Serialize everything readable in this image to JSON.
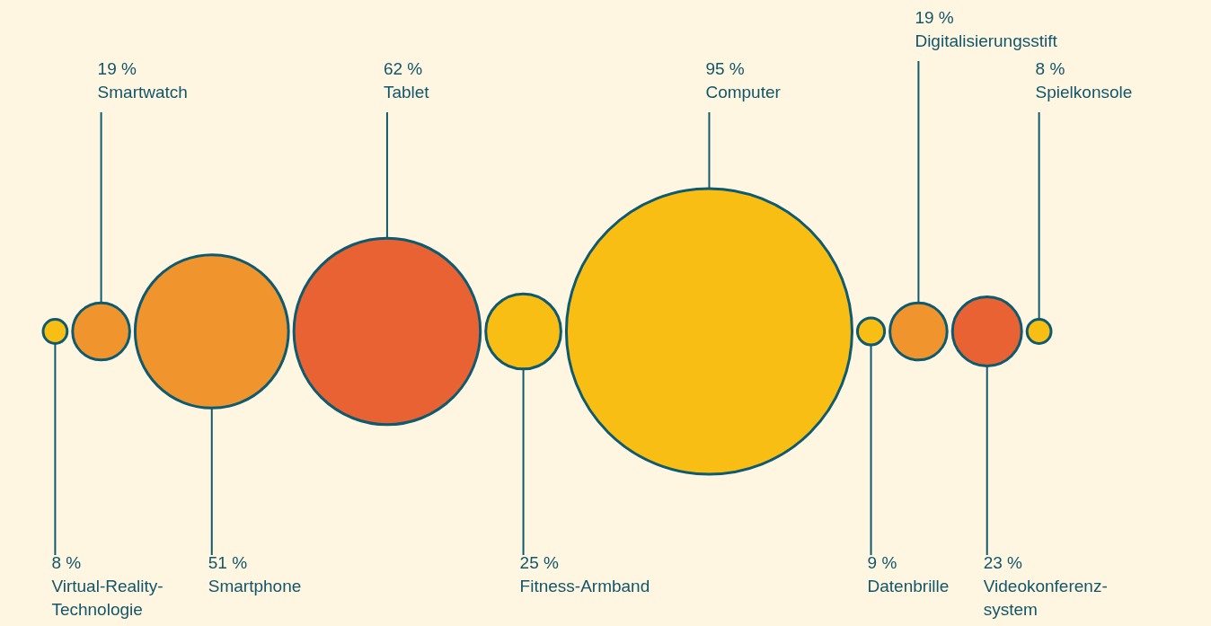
{
  "chart_data": {
    "type": "other",
    "categories": [
      "Virtual-Reality-Technologie",
      "Smartwatch",
      "Smartphone",
      "Tablet",
      "Fitness-Armband",
      "Computer",
      "Datenbrille",
      "Digitalisierungsstift",
      "Videokonferenz-system",
      "Spielkonsole"
    ],
    "values": [
      8,
      19,
      51,
      62,
      25,
      95,
      9,
      19,
      23,
      8
    ],
    "value_labels": [
      "8 %",
      "19 %",
      "51 %",
      "62 %",
      "25 %",
      "95 %",
      "9 %",
      "19 %",
      "23 %",
      "8 %"
    ],
    "colors": [
      "#f9be14",
      "#f0952e",
      "#f0952e",
      "#e86233",
      "#f9be14",
      "#f9be14",
      "#f9be14",
      "#f0952e",
      "#e86233",
      "#f9be14"
    ]
  }
}
